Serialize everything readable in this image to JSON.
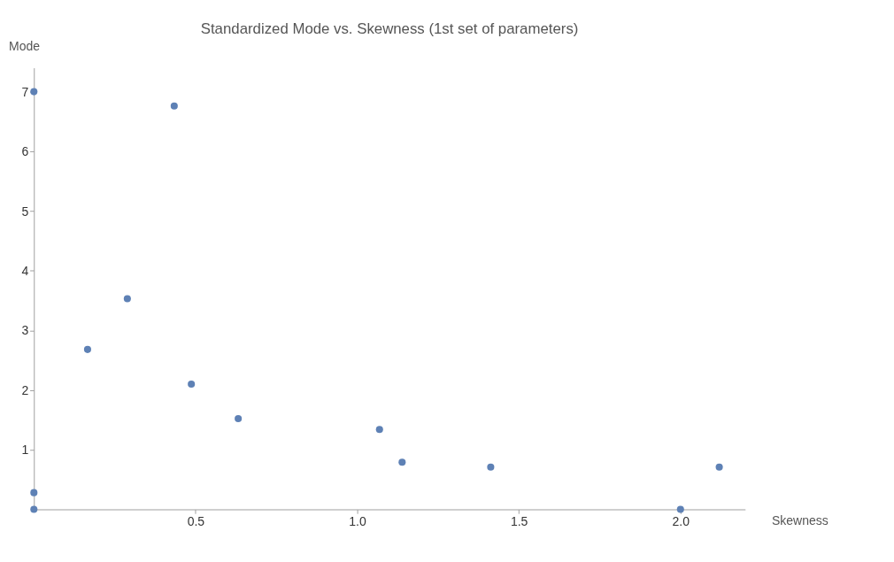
{
  "chart_data": {
    "type": "scatter",
    "title": "Standardized Mode vs. Skewness (1st set of parameters)",
    "xlabel": "Skewness",
    "ylabel": "Mode",
    "x": [
      0,
      0,
      0,
      0.166,
      0.289,
      0.434,
      0.487,
      0.632,
      1.069,
      1.139,
      1.413,
      2.0,
      2.12
    ],
    "series": [
      {
        "color": "#5e81b5",
        "values": [
          7.0,
          0.28,
          0.0,
          2.68,
          3.53,
          6.76,
          2.1,
          1.52,
          1.34,
          0.79,
          0.71,
          0.0,
          0.71
        ]
      }
    ],
    "xlim": [
      0,
      2.2
    ],
    "ylim": [
      0,
      7.4
    ],
    "xticks": [
      {
        "value": 0.5,
        "label": "0.5"
      },
      {
        "value": 1,
        "label": "1.0"
      },
      {
        "value": 1.5,
        "label": "1.5"
      },
      {
        "value": 2,
        "label": "2.0"
      }
    ],
    "yticks": [
      1,
      2,
      3,
      4,
      5,
      6,
      7
    ],
    "grid": false,
    "marker": "circle"
  }
}
